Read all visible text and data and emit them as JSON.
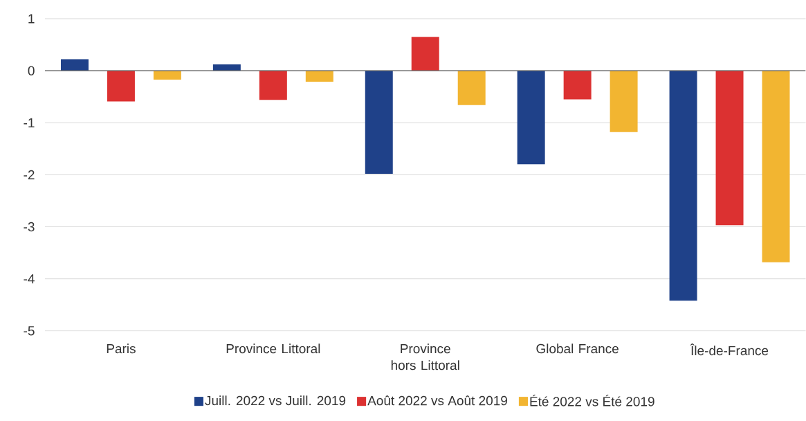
{
  "chart_data": {
    "type": "bar",
    "categories": [
      "Paris",
      "Province Littoral",
      "Province hors Littoral",
      "Global France",
      "Île-de-France"
    ],
    "series": [
      {
        "name": "Juill. 2022 vs Juill. 2019",
        "color": "#1f4189",
        "values": [
          0.22,
          0.12,
          -1.98,
          -1.8,
          -4.42
        ]
      },
      {
        "name": "Août 2022 vs Août 2019",
        "color": "#dc3131",
        "values": [
          -0.59,
          -0.56,
          0.65,
          -0.55,
          -2.97
        ]
      },
      {
        "name": "Été 2022 vs Été 2019",
        "color": "#f2b531",
        "values": [
          -0.17,
          -0.21,
          -0.66,
          -1.18,
          -3.68
        ]
      }
    ],
    "ylim": [
      -5,
      1
    ],
    "yticks": [
      -5,
      -4,
      -3,
      -2,
      -1,
      0,
      1
    ],
    "grid": "y",
    "legend": "bottom"
  }
}
